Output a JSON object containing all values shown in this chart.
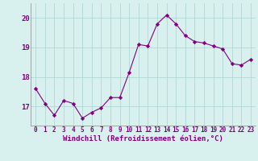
{
  "x": [
    0,
    1,
    2,
    3,
    4,
    5,
    6,
    7,
    8,
    9,
    10,
    11,
    12,
    13,
    14,
    15,
    16,
    17,
    18,
    19,
    20,
    21,
    22,
    23
  ],
  "y": [
    17.6,
    17.1,
    16.7,
    17.2,
    17.1,
    16.6,
    16.8,
    16.95,
    17.3,
    17.3,
    18.15,
    19.1,
    19.05,
    19.8,
    20.1,
    19.8,
    19.4,
    19.2,
    19.15,
    19.05,
    18.95,
    18.45,
    18.4,
    18.6
  ],
  "line_color": "#800080",
  "marker": "D",
  "marker_size": 2.2,
  "bg_color": "#d8f0ee",
  "grid_color": "#b0d8d4",
  "xlabel": "Windchill (Refroidissement éolien,°C)",
  "xlabel_color": "#800080",
  "tick_color": "#800080",
  "spine_color": "#888888",
  "ylim": [
    16.35,
    20.5
  ],
  "yticks": [
    17,
    18,
    19,
    20
  ],
  "xticks": [
    0,
    1,
    2,
    3,
    4,
    5,
    6,
    7,
    8,
    9,
    10,
    11,
    12,
    13,
    14,
    15,
    16,
    17,
    18,
    19,
    20,
    21,
    22,
    23
  ],
  "tick_fontsize": 5.5,
  "xlabel_fontsize": 6.5,
  "ytick_fontsize": 6.5
}
